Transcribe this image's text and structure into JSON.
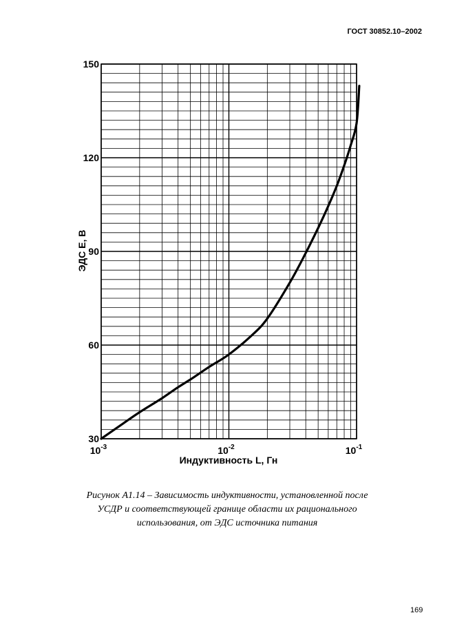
{
  "header": {
    "standard": "ГОСТ 30852.10–2002"
  },
  "chart_data": {
    "type": "line",
    "x_scale": "log",
    "xlim": [
      0.001,
      0.1
    ],
    "ylim": [
      30,
      150
    ],
    "grid": true,
    "ylabel": "ЭДС E, В",
    "xlabel": "Индуктивность L, Гн",
    "y_ticks": [
      "30",
      "60",
      "90",
      "120",
      "150"
    ],
    "x_ticks": [
      {
        "base": "10",
        "exp": "-3"
      },
      {
        "base": "10",
        "exp": "-2"
      },
      {
        "base": "10",
        "exp": "-1"
      }
    ],
    "series": [
      {
        "x": [
          0.001,
          0.0015,
          0.002,
          0.003,
          0.004,
          0.005,
          0.007,
          0.01,
          0.015,
          0.02,
          0.03,
          0.04,
          0.05,
          0.06,
          0.07,
          0.08,
          0.09,
          0.1,
          0.105
        ],
        "y": [
          30,
          35,
          38.5,
          43,
          46.5,
          49,
          53,
          57,
          63,
          68.5,
          80,
          89.5,
          97.5,
          104.5,
          111,
          117.5,
          124,
          131,
          143
        ]
      }
    ]
  },
  "caption": {
    "line1": "Рисунок А1.14 – Зависимость индуктивности, установленной после",
    "line2": "УСДР и соответствующей границе области их рационального",
    "line3": "использования, от ЭДС источника питания"
  },
  "page_number": "169"
}
